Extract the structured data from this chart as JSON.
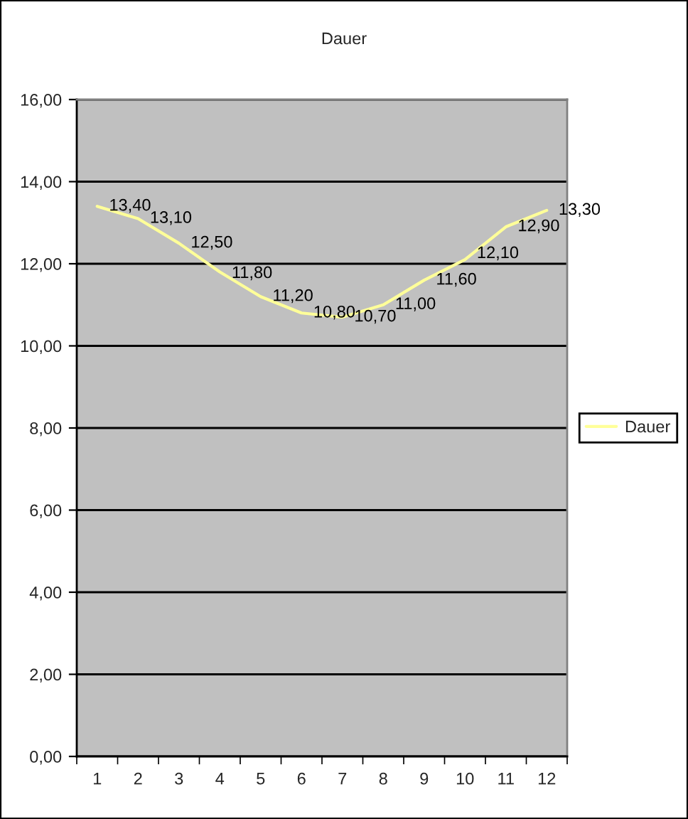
{
  "chart_data": {
    "type": "line",
    "title": "Dauer",
    "categories": [
      "1",
      "2",
      "3",
      "4",
      "5",
      "6",
      "7",
      "8",
      "9",
      "10",
      "11",
      "12"
    ],
    "series": [
      {
        "name": "Dauer",
        "color": "#ffff99",
        "values": [
          13.4,
          13.1,
          12.5,
          11.8,
          11.2,
          10.8,
          10.7,
          11.0,
          11.6,
          12.1,
          12.9,
          13.3
        ],
        "value_labels": [
          "13,40",
          "13,10",
          "12,50",
          "11,80",
          "11,20",
          "10,80",
          "10,70",
          "11,00",
          "11,60",
          "12,10",
          "12,90",
          "13,30"
        ]
      }
    ],
    "ylim": [
      0,
      16
    ],
    "yticks": [
      {
        "value": 0,
        "label": "0,00"
      },
      {
        "value": 2,
        "label": "2,00"
      },
      {
        "value": 4,
        "label": "4,00"
      },
      {
        "value": 6,
        "label": "6,00"
      },
      {
        "value": 8,
        "label": "8,00"
      },
      {
        "value": 10,
        "label": "10,00"
      },
      {
        "value": 12,
        "label": "12,00"
      },
      {
        "value": 14,
        "label": "14,00"
      },
      {
        "value": 16,
        "label": "16,00"
      }
    ],
    "grid": "y",
    "legend": "right",
    "line_style": "solid"
  }
}
